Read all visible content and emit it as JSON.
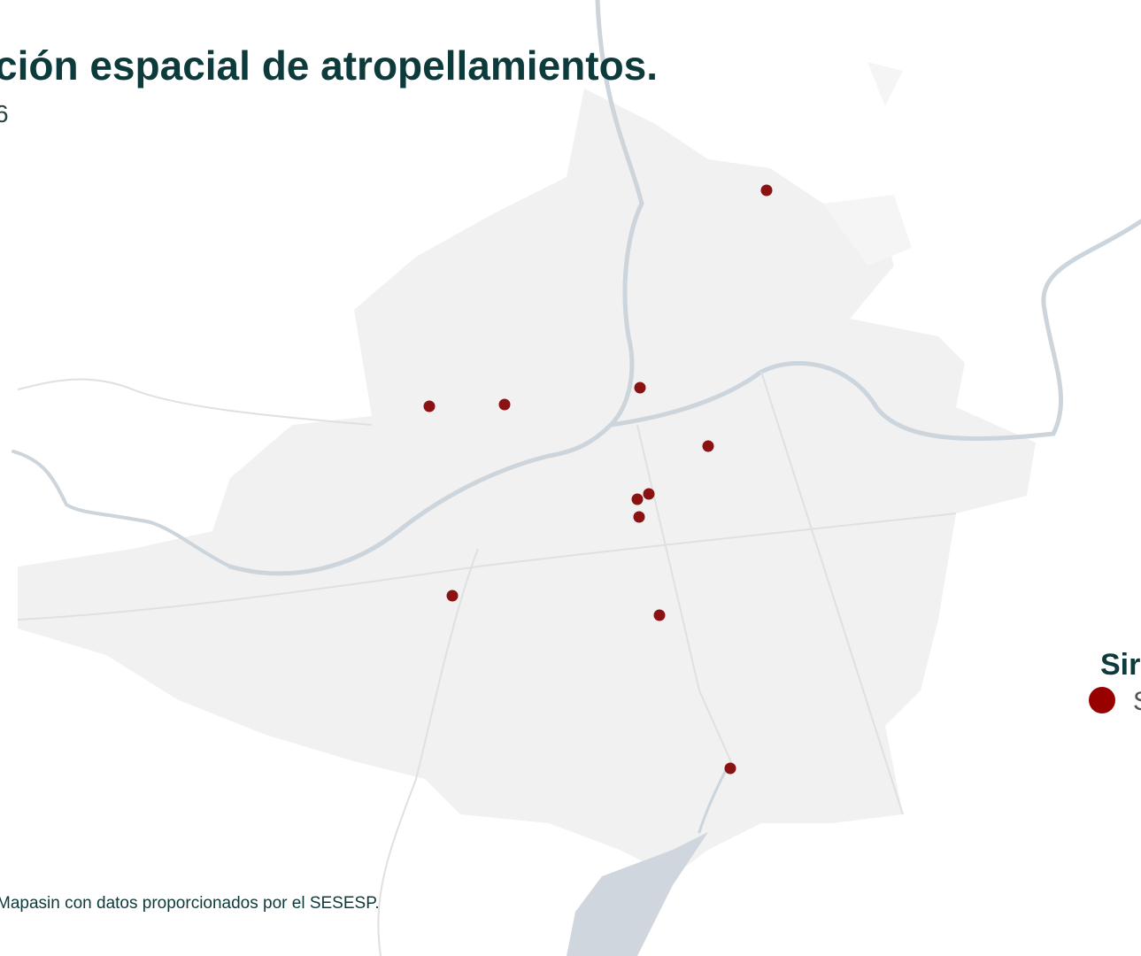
{
  "title": "ción espacial de atropellamientos.",
  "subtitle": "6",
  "legend": {
    "title": "Sir",
    "items": [
      "S"
    ]
  },
  "source": "Mapasin con datos proporcionados por el SESESP."
}
